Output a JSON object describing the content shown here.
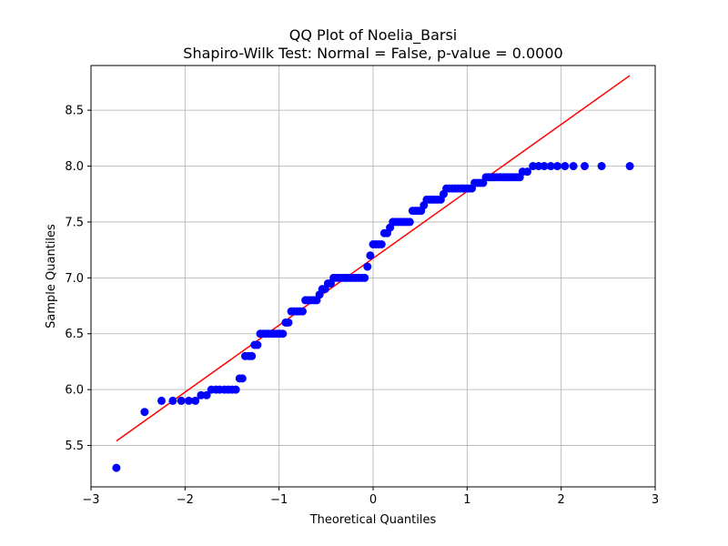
{
  "chart_data": {
    "type": "scatter",
    "title": "QQ Plot of Noelia_Barsi",
    "subtitle": "Shapiro-Wilk Test: Normal = False, p-value = 0.0000",
    "xlabel": "Theoretical Quantiles",
    "ylabel": "Sample Quantiles",
    "xlim": [
      -3.0,
      3.0
    ],
    "ylim": [
      5.13,
      8.9
    ],
    "xticks": [
      -3,
      -2,
      -1,
      0,
      1,
      2,
      3
    ],
    "xtick_labels": [
      "−3",
      "−2",
      "−1",
      "0",
      "1",
      "2",
      "3"
    ],
    "yticks": [
      5.5,
      6.0,
      6.5,
      7.0,
      7.5,
      8.0,
      8.5
    ],
    "ytick_labels": [
      "5.5",
      "6.0",
      "6.5",
      "7.0",
      "7.5",
      "8.0",
      "8.5"
    ],
    "grid": true,
    "point_color": "#0000ff",
    "line_color": "#ff0000",
    "fit_line": {
      "x": [
        -2.73,
        2.73
      ],
      "y": [
        5.54,
        8.81
      ]
    },
    "points": [
      [
        -2.73,
        5.3
      ],
      [
        -2.43,
        5.8
      ],
      [
        -2.25,
        5.9
      ],
      [
        -2.13,
        5.9
      ],
      [
        -2.04,
        5.9
      ],
      [
        -1.96,
        5.9
      ],
      [
        -1.89,
        5.9
      ],
      [
        -1.83,
        5.95
      ],
      [
        -1.77,
        5.95
      ],
      [
        -1.72,
        6.0
      ],
      [
        -1.67,
        6.0
      ],
      [
        -1.63,
        6.0
      ],
      [
        -1.58,
        6.0
      ],
      [
        -1.54,
        6.0
      ],
      [
        -1.5,
        6.0
      ],
      [
        -1.46,
        6.0
      ],
      [
        -1.42,
        6.1
      ],
      [
        -1.39,
        6.1
      ],
      [
        -1.36,
        6.3
      ],
      [
        -1.32,
        6.3
      ],
      [
        -1.29,
        6.3
      ],
      [
        -1.26,
        6.4
      ],
      [
        -1.23,
        6.4
      ],
      [
        -1.2,
        6.5
      ],
      [
        -1.17,
        6.5
      ],
      [
        -1.14,
        6.5
      ],
      [
        -1.11,
        6.5
      ],
      [
        -1.08,
        6.5
      ],
      [
        -1.05,
        6.5
      ],
      [
        -1.02,
        6.5
      ],
      [
        -0.99,
        6.5
      ],
      [
        -0.96,
        6.5
      ],
      [
        -0.93,
        6.6
      ],
      [
        -0.9,
        6.6
      ],
      [
        -0.87,
        6.7
      ],
      [
        -0.84,
        6.7
      ],
      [
        -0.81,
        6.7
      ],
      [
        -0.78,
        6.7
      ],
      [
        -0.75,
        6.7
      ],
      [
        -0.72,
        6.8
      ],
      [
        -0.69,
        6.8
      ],
      [
        -0.66,
        6.8
      ],
      [
        -0.63,
        6.8
      ],
      [
        -0.6,
        6.8
      ],
      [
        -0.57,
        6.85
      ],
      [
        -0.54,
        6.9
      ],
      [
        -0.51,
        6.9
      ],
      [
        -0.48,
        6.95
      ],
      [
        -0.45,
        6.95
      ],
      [
        -0.42,
        7.0
      ],
      [
        -0.39,
        7.0
      ],
      [
        -0.36,
        7.0
      ],
      [
        -0.33,
        7.0
      ],
      [
        -0.3,
        7.0
      ],
      [
        -0.27,
        7.0
      ],
      [
        -0.24,
        7.0
      ],
      [
        -0.21,
        7.0
      ],
      [
        -0.18,
        7.0
      ],
      [
        -0.15,
        7.0
      ],
      [
        -0.12,
        7.0
      ],
      [
        -0.09,
        7.0
      ],
      [
        -0.06,
        7.1
      ],
      [
        -0.03,
        7.2
      ],
      [
        0.0,
        7.3
      ],
      [
        0.03,
        7.3
      ],
      [
        0.06,
        7.3
      ],
      [
        0.09,
        7.3
      ],
      [
        0.12,
        7.4
      ],
      [
        0.15,
        7.4
      ],
      [
        0.18,
        7.45
      ],
      [
        0.21,
        7.5
      ],
      [
        0.24,
        7.5
      ],
      [
        0.27,
        7.5
      ],
      [
        0.3,
        7.5
      ],
      [
        0.33,
        7.5
      ],
      [
        0.36,
        7.5
      ],
      [
        0.39,
        7.5
      ],
      [
        0.42,
        7.6
      ],
      [
        0.45,
        7.6
      ],
      [
        0.48,
        7.6
      ],
      [
        0.51,
        7.6
      ],
      [
        0.54,
        7.65
      ],
      [
        0.57,
        7.7
      ],
      [
        0.6,
        7.7
      ],
      [
        0.63,
        7.7
      ],
      [
        0.66,
        7.7
      ],
      [
        0.69,
        7.7
      ],
      [
        0.72,
        7.7
      ],
      [
        0.75,
        7.75
      ],
      [
        0.78,
        7.8
      ],
      [
        0.81,
        7.8
      ],
      [
        0.84,
        7.8
      ],
      [
        0.87,
        7.8
      ],
      [
        0.9,
        7.8
      ],
      [
        0.93,
        7.8
      ],
      [
        0.96,
        7.8
      ],
      [
        0.99,
        7.8
      ],
      [
        1.02,
        7.8
      ],
      [
        1.05,
        7.8
      ],
      [
        1.08,
        7.85
      ],
      [
        1.11,
        7.85
      ],
      [
        1.14,
        7.85
      ],
      [
        1.17,
        7.85
      ],
      [
        1.2,
        7.9
      ],
      [
        1.23,
        7.9
      ],
      [
        1.26,
        7.9
      ],
      [
        1.29,
        7.9
      ],
      [
        1.32,
        7.9
      ],
      [
        1.35,
        7.9
      ],
      [
        1.38,
        7.9
      ],
      [
        1.41,
        7.9
      ],
      [
        1.44,
        7.9
      ],
      [
        1.47,
        7.9
      ],
      [
        1.5,
        7.9
      ],
      [
        1.53,
        7.9
      ],
      [
        1.56,
        7.9
      ],
      [
        1.59,
        7.95
      ],
      [
        1.64,
        7.95
      ],
      [
        1.7,
        8.0
      ],
      [
        1.76,
        8.0
      ],
      [
        1.82,
        8.0
      ],
      [
        1.89,
        8.0
      ],
      [
        1.96,
        8.0
      ],
      [
        2.04,
        8.0
      ],
      [
        2.13,
        8.0
      ],
      [
        2.25,
        8.0
      ],
      [
        2.43,
        8.0
      ],
      [
        2.73,
        8.0
      ]
    ]
  }
}
